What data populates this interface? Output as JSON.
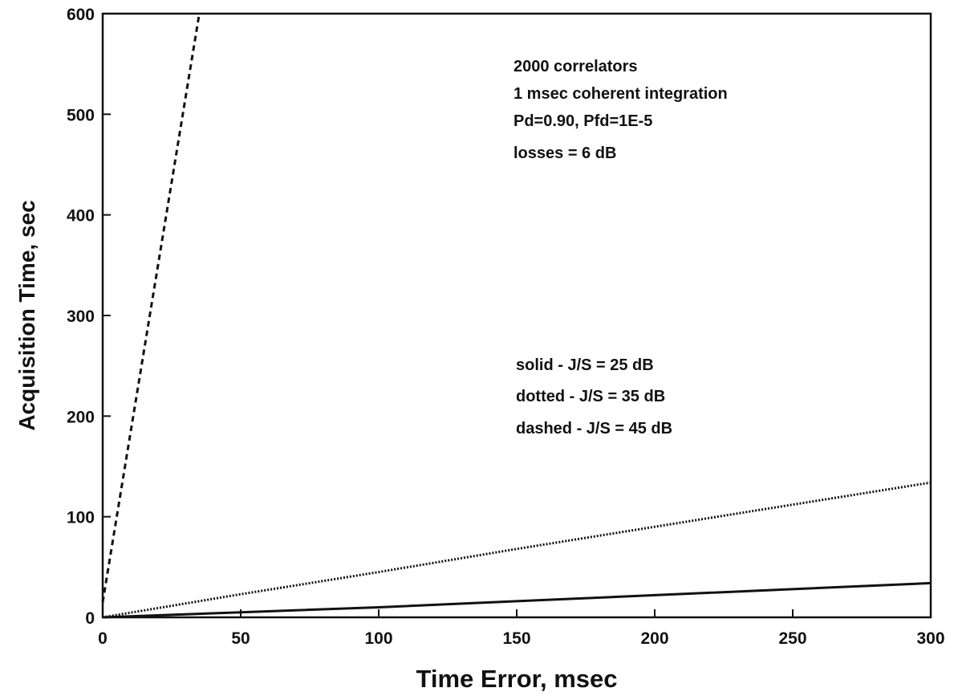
{
  "chart_data": {
    "type": "line",
    "xlabel": "Time Error, msec",
    "ylabel": "Acquisition Time, sec",
    "xlim": [
      0,
      300
    ],
    "ylim": [
      0,
      600
    ],
    "x_ticks": [
      0,
      50,
      100,
      150,
      200,
      250,
      300
    ],
    "y_ticks": [
      0,
      100,
      200,
      300,
      400,
      500,
      600
    ],
    "grid": false,
    "series": [
      {
        "style": "solid",
        "x": [
          0,
          50,
          100,
          150,
          200,
          250,
          300
        ],
        "y": [
          0,
          5,
          10,
          16,
          22,
          28,
          34
        ]
      },
      {
        "style": "dotted",
        "x": [
          0,
          50,
          100,
          150,
          200,
          250,
          300
        ],
        "y": [
          0,
          23,
          45,
          68,
          90,
          112,
          134
        ]
      },
      {
        "style": "dashed",
        "x": [
          0,
          35
        ],
        "y": [
          15,
          600
        ]
      }
    ],
    "annotations": {
      "conditions": [
        "2000 correlators",
        "1 msec coherent integration",
        "Pd=0.90, Pfd=1E-5",
        "losses = 6 dB"
      ],
      "line_key": [
        "solid - J/S = 25 dB",
        "dotted - J/S = 35 dB",
        "dashed - J/S = 45 dB"
      ]
    }
  }
}
